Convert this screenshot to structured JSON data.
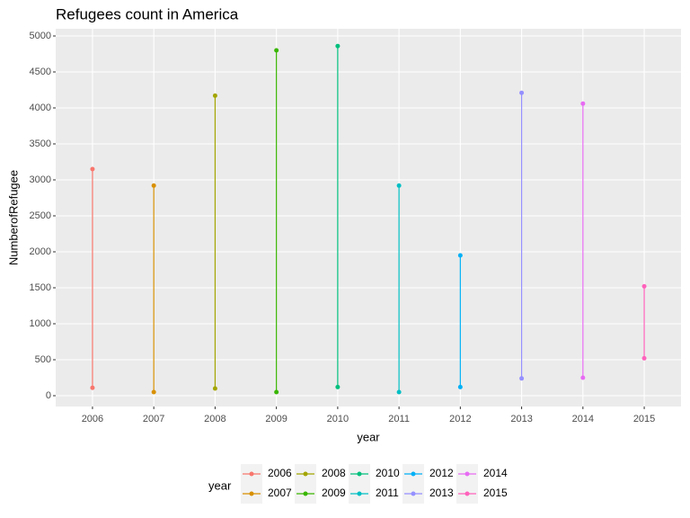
{
  "chart_data": {
    "type": "range",
    "title": "Refugees count in America",
    "x_label": "year",
    "y_label": "NumberofRefugee",
    "legend_title": "year",
    "categories": [
      "2006",
      "2007",
      "2008",
      "2009",
      "2010",
      "2011",
      "2012",
      "2013",
      "2014",
      "2015"
    ],
    "series": [
      {
        "name": "2006",
        "color": "#F8766D",
        "x": [
          "2006",
          "2006"
        ],
        "values": [
          110,
          3150
        ]
      },
      {
        "name": "2007",
        "color": "#D89000",
        "x": [
          "2007",
          "2007"
        ],
        "values": [
          50,
          2920
        ]
      },
      {
        "name": "2008",
        "color": "#A3A500",
        "x": [
          "2008",
          "2008"
        ],
        "values": [
          100,
          4170
        ]
      },
      {
        "name": "2009",
        "color": "#39B600",
        "x": [
          "2009",
          "2009"
        ],
        "values": [
          50,
          4800
        ]
      },
      {
        "name": "2010",
        "color": "#00BF7D",
        "x": [
          "2010",
          "2010"
        ],
        "values": [
          120,
          4860
        ]
      },
      {
        "name": "2011",
        "color": "#00BFC4",
        "x": [
          "2011",
          "2011"
        ],
        "values": [
          50,
          2920
        ]
      },
      {
        "name": "2012",
        "color": "#00B0F6",
        "x": [
          "2012",
          "2012"
        ],
        "values": [
          120,
          1950
        ]
      },
      {
        "name": "2013",
        "color": "#9590FF",
        "x": [
          "2013",
          "2013"
        ],
        "values": [
          240,
          4210
        ]
      },
      {
        "name": "2014",
        "color": "#E76BF3",
        "x": [
          "2014",
          "2014"
        ],
        "values": [
          250,
          4060
        ]
      },
      {
        "name": "2015",
        "color": "#FF62BC",
        "x": [
          "2015",
          "2015"
        ],
        "values": [
          520,
          1520
        ]
      }
    ],
    "ylim": [
      -150,
      5100
    ],
    "yticks": [
      0,
      500,
      1000,
      1500,
      2000,
      2500,
      3000,
      3500,
      4000,
      4500,
      5000
    ],
    "grid": true,
    "legend_position": "bottom"
  }
}
